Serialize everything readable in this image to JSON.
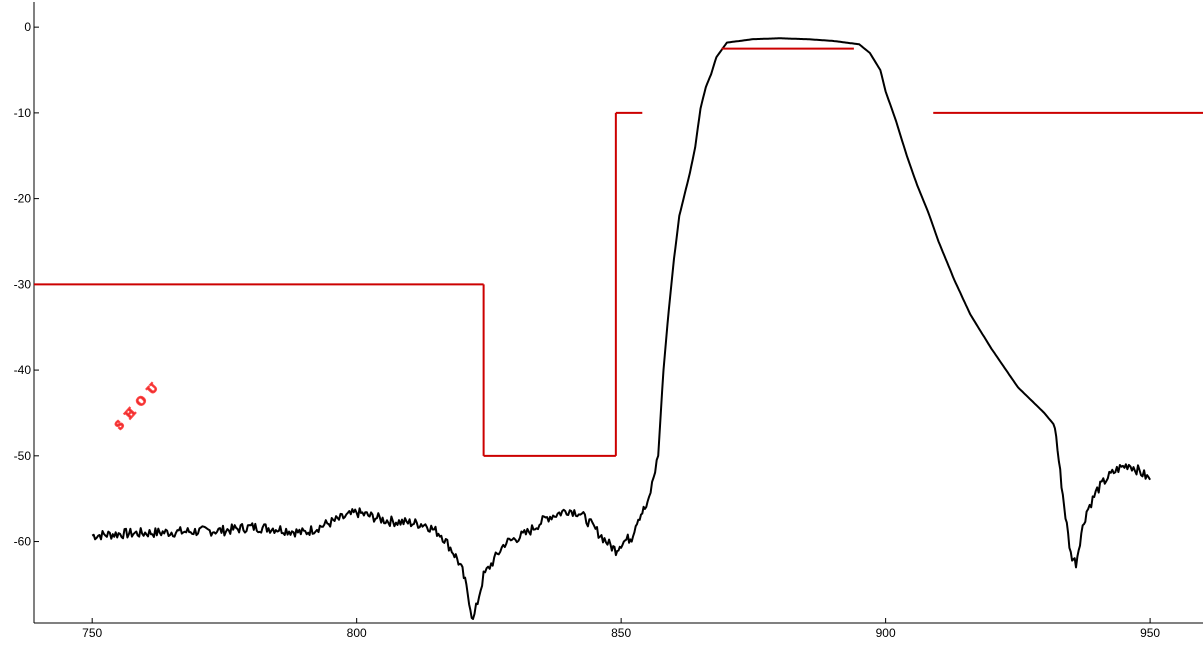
{
  "chart_data": {
    "type": "line",
    "title": "",
    "xlabel": "",
    "ylabel": "",
    "xlim": [
      739,
      960
    ],
    "ylim": [
      -69.5,
      2
    ],
    "x_ticks": [
      750,
      800,
      850,
      900,
      950
    ],
    "y_ticks": [
      0,
      -10,
      -20,
      -30,
      -40,
      -50,
      -60
    ],
    "grid": false,
    "legend": "none",
    "colors": {
      "response": "#000000",
      "mask": "#cc0000",
      "axis": "#000000",
      "watermark": "#ff3030"
    },
    "series": [
      {
        "style": "line",
        "color": "#000000",
        "x": [
          750,
          755,
          760,
          765,
          770,
          775,
          780,
          785,
          790,
          795,
          800,
          803,
          806,
          810,
          813,
          816,
          818,
          819,
          820,
          821,
          822,
          824,
          828,
          832,
          836,
          840,
          842,
          844,
          846,
          848,
          849,
          850,
          851,
          852,
          853,
          854,
          855,
          857,
          858,
          859,
          860,
          861,
          862,
          863,
          864,
          865,
          866,
          867,
          868,
          870,
          875,
          880,
          885,
          890,
          895,
          897,
          899,
          900,
          902,
          904,
          906,
          908,
          910,
          913,
          916,
          920,
          925,
          930,
          932,
          933,
          934,
          935,
          936,
          937,
          938,
          940,
          942,
          944,
          946,
          948,
          950
        ],
        "y": [
          -59.3,
          -59.1,
          -59.0,
          -58.9,
          -58.8,
          -58.7,
          -58.3,
          -58.5,
          -59.0,
          -57.8,
          -56.6,
          -57.1,
          -57.6,
          -57.8,
          -58.0,
          -59.2,
          -61.0,
          -62.0,
          -63.5,
          -66.0,
          -69.3,
          -64.0,
          -60.2,
          -59.1,
          -57.2,
          -56.3,
          -56.6,
          -57.8,
          -59.2,
          -60.5,
          -61.0,
          -60.2,
          -59.8,
          -59.5,
          -57.5,
          -56.5,
          -55.8,
          -50.0,
          -40.0,
          -33.0,
          -27.0,
          -22.0,
          -19.5,
          -17.0,
          -14.0,
          -9.5,
          -7.0,
          -5.5,
          -3.5,
          -1.8,
          -1.4,
          -1.3,
          -1.4,
          -1.6,
          -2.0,
          -3.0,
          -5.0,
          -7.5,
          -11.0,
          -15.0,
          -18.5,
          -21.5,
          -25.0,
          -29.5,
          -33.5,
          -37.5,
          -42.0,
          -45.0,
          -46.5,
          -52.0,
          -57.0,
          -61.5,
          -62.5,
          -59.0,
          -56.5,
          -54.0,
          -52.5,
          -51.5,
          -51.0,
          -51.8,
          -52.8
        ]
      },
      {
        "style": "segment",
        "color": "#cc0000",
        "x": [
          739,
          824
        ],
        "y": [
          -30,
          -30
        ]
      },
      {
        "style": "segment",
        "color": "#cc0000",
        "x": [
          824,
          824
        ],
        "y": [
          -30,
          -50
        ]
      },
      {
        "style": "segment",
        "color": "#cc0000",
        "x": [
          824,
          849
        ],
        "y": [
          -50,
          -50
        ]
      },
      {
        "style": "segment",
        "color": "#cc0000",
        "x": [
          849,
          849
        ],
        "y": [
          -50,
          -10
        ]
      },
      {
        "style": "segment",
        "color": "#cc0000",
        "x": [
          849,
          854
        ],
        "y": [
          -10,
          -10
        ]
      },
      {
        "style": "segment",
        "color": "#cc0000",
        "x": [
          869,
          894
        ],
        "y": [
          -2.5,
          -2.5
        ]
      },
      {
        "style": "segment",
        "color": "#cc0000",
        "x": [
          909,
          960
        ],
        "y": [
          -10,
          -10
        ]
      }
    ],
    "watermark_text": "SHOU"
  }
}
